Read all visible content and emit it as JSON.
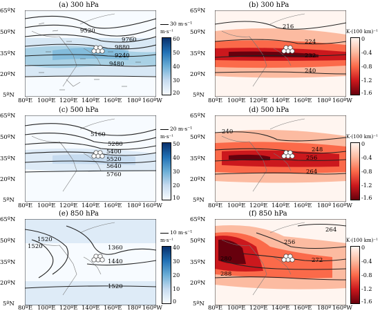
{
  "panels": [
    {
      "title": "(a) 300 hPa",
      "contour_labels": [
        "9520",
        "9760",
        "9880",
        "9240",
        "9480"
      ],
      "colorbar": {
        "ticks": [
          "60",
          "50",
          "40",
          "30",
          "20"
        ],
        "units": "m·s⁻¹",
        "ref_vector": "30 m·s⁻¹"
      },
      "colors": [
        "#08306b",
        "#2171b5",
        "#6baed6",
        "#c6dbef",
        "#f7fbff"
      ]
    },
    {
      "title": "(b) 300 hPa",
      "contour_labels": [
        "216",
        "224",
        "232",
        "240"
      ],
      "colorbar": {
        "ticks": [
          "0",
          "-0.4",
          "-0.8",
          "-1.2",
          "-1.6"
        ],
        "units": "K·(100 km)⁻¹"
      },
      "colors": [
        "#fff5f0",
        "#fcbba1",
        "#fb6a4a",
        "#cb181d",
        "#67000d"
      ]
    },
    {
      "title": "(c) 500 hPa",
      "contour_labels": [
        "5160",
        "5280",
        "5400",
        "5520",
        "5640",
        "5760"
      ],
      "colorbar": {
        "ticks": [
          "50",
          "40",
          "30",
          "20",
          "10"
        ],
        "units": "m·s⁻¹",
        "ref_vector": "20 m·s⁻¹"
      },
      "colors": [
        "#08306b",
        "#2171b5",
        "#6baed6",
        "#c6dbef",
        "#f7fbff"
      ]
    },
    {
      "title": "(d) 500 hPa",
      "contour_labels": [
        "240",
        "248",
        "256",
        "264"
      ],
      "colorbar": {
        "ticks": [
          "0",
          "-0.4",
          "-0.8",
          "-1.2",
          "-1.6"
        ],
        "units": "K·(100 km)⁻¹"
      },
      "colors": [
        "#fff5f0",
        "#fcbba1",
        "#fb6a4a",
        "#cb181d",
        "#67000d"
      ]
    },
    {
      "title": "(e) 850 hPa",
      "contour_labels": [
        "1520",
        "1520",
        "1360",
        "1440",
        "1520"
      ],
      "colorbar": {
        "ticks": [
          "40",
          "30",
          "20",
          "10",
          "0"
        ],
        "units": "m·s⁻¹",
        "ref_vector": "10 m·s⁻¹"
      },
      "colors": [
        "#08306b",
        "#2171b5",
        "#6baed6",
        "#c6dbef",
        "#f7fbff"
      ]
    },
    {
      "title": "(f) 850 hPa",
      "contour_labels": [
        "264",
        "256",
        "272",
        "280",
        "288"
      ],
      "colorbar": {
        "ticks": [
          "0",
          "-0.4",
          "-0.8",
          "-1.2",
          "-1.6"
        ],
        "units": "K·(100 km)⁻¹"
      },
      "colors": [
        "#fff5f0",
        "#fcbba1",
        "#fb6a4a",
        "#cb181d",
        "#67000d"
      ]
    }
  ],
  "lat_labels": [
    "65ºN",
    "50ºN",
    "35ºN",
    "20ºN",
    "5ºN"
  ],
  "lon_labels": [
    "80ºE",
    "100ºE",
    "120ºE",
    "140ºE",
    "160ºE",
    "180º",
    "160ºW"
  ]
}
